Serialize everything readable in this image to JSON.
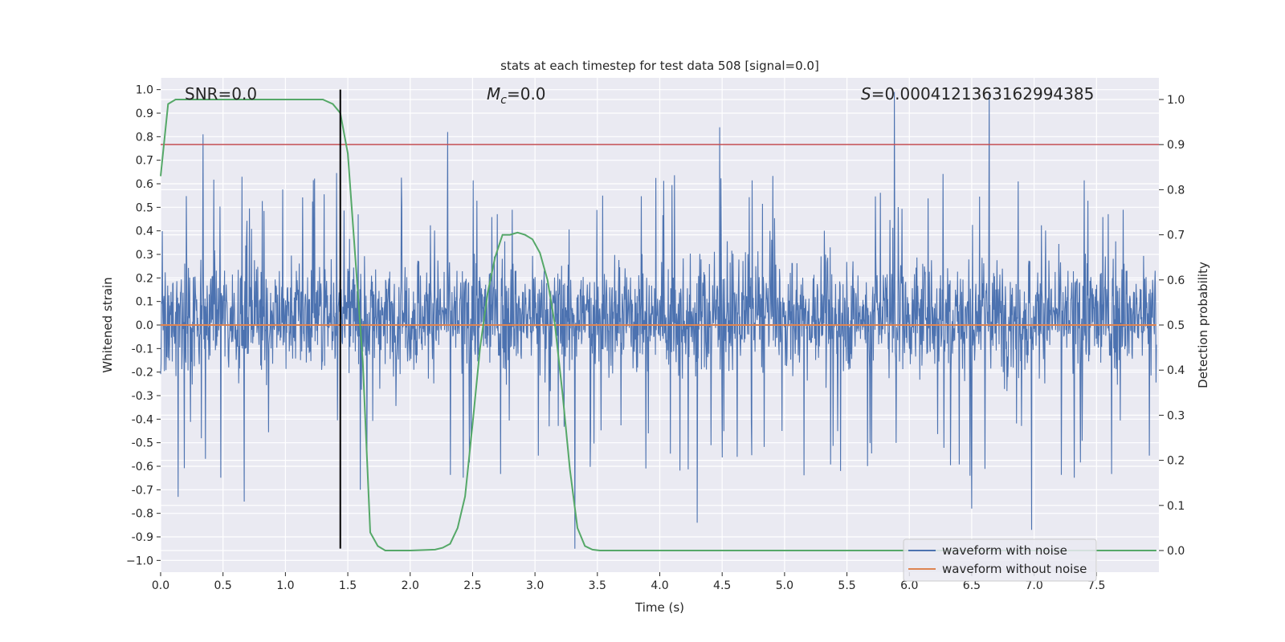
{
  "chart_data": {
    "type": "line",
    "title": "stats at each timestep for test data 508 [signal=0.0]",
    "xlabel": "Time (s)",
    "ylabel": "Whitened strain",
    "y2label": "Detection probability",
    "xlim": [
      0.0,
      8.0
    ],
    "ylim": [
      -1.05,
      1.05
    ],
    "y2lim": [
      -0.048,
      1.048
    ],
    "xticks": [
      0.0,
      0.5,
      1.0,
      1.5,
      2.0,
      2.5,
      3.0,
      3.5,
      4.0,
      4.5,
      5.0,
      5.5,
      6.0,
      6.5,
      7.0,
      7.5
    ],
    "xtick_labels": [
      "0.0",
      "0.5",
      "1.0",
      "1.5",
      "2.0",
      "2.5",
      "3.0",
      "3.5",
      "4.0",
      "4.5",
      "5.0",
      "5.5",
      "6.0",
      "6.5",
      "7.0",
      "7.5"
    ],
    "yticks": [
      1.0,
      0.9,
      0.8,
      0.7,
      0.6,
      0.5,
      0.4,
      0.3,
      0.2,
      0.1,
      0.0,
      -0.1,
      -0.2,
      -0.3,
      -0.4,
      -0.5,
      -0.6,
      -0.7,
      -0.8,
      -0.9,
      -1.0
    ],
    "ytick_labels": [
      "1.0",
      "0.9",
      "0.8",
      "0.7",
      "0.6",
      "0.5",
      "0.4",
      "0.3",
      "0.2",
      "0.1",
      "0.0",
      "-0.1",
      "-0.2",
      "-0.3",
      "-0.4",
      "-0.5",
      "-0.6",
      "-0.7",
      "-0.8",
      "-0.9",
      "−1.0"
    ],
    "y2ticks": [
      1.0,
      0.9,
      0.8,
      0.7,
      0.6,
      0.5,
      0.4,
      0.3,
      0.2,
      0.1,
      0.0
    ],
    "y2tick_labels": [
      "1.0",
      "0.9",
      "0.8",
      "0.7",
      "0.6",
      "0.5",
      "0.4",
      "0.3",
      "0.2",
      "0.1",
      "0.0"
    ],
    "annotations": {
      "snr": "SNR=0.0",
      "mc_symbol": "M",
      "mc_sub": "c",
      "mc_value": "=0.0",
      "s_symbol": "S",
      "s_value": "=0.0004121363162994385"
    },
    "series": [
      {
        "name": "waveform with noise",
        "color": "#4c72b0",
        "axis": "left",
        "kind": "noise",
        "t_range": [
          0.0,
          7.98
        ],
        "typical_envelope": [
          -0.4,
          0.5
        ],
        "peaks": [
          [
            0.34,
            0.81
          ],
          [
            2.3,
            0.82
          ],
          [
            4.48,
            0.84
          ],
          [
            5.88,
            0.99
          ],
          [
            6.64,
            0.99
          ],
          [
            3.32,
            -0.95
          ],
          [
            6.98,
            -0.87
          ],
          [
            4.3,
            -0.84
          ],
          [
            6.5,
            -0.78
          ],
          [
            1.6,
            -0.7
          ],
          [
            0.14,
            -0.73
          ],
          [
            0.67,
            -0.75
          ]
        ]
      },
      {
        "name": "waveform without noise",
        "color": "#dd8452",
        "axis": "left",
        "x": [
          0.0,
          7.98
        ],
        "y": [
          0.0,
          0.0
        ]
      },
      {
        "name": "detection probability",
        "color": "#55a868",
        "axis": "right",
        "x": [
          0.0,
          0.06,
          0.12,
          0.2,
          0.5,
          1.0,
          1.3,
          1.38,
          1.44,
          1.5,
          1.56,
          1.62,
          1.68,
          1.74,
          1.8,
          2.0,
          2.2,
          2.26,
          2.32,
          2.38,
          2.44,
          2.5,
          2.56,
          2.62,
          2.68,
          2.74,
          2.8,
          2.86,
          2.92,
          2.98,
          3.04,
          3.1,
          3.16,
          3.22,
          3.28,
          3.34,
          3.4,
          3.46,
          3.52,
          3.58,
          3.64,
          3.7,
          4.0,
          5.0,
          6.0,
          7.0,
          7.98
        ],
        "y": [
          0.83,
          0.99,
          1.0,
          1.0,
          1.0,
          1.0,
          1.0,
          0.99,
          0.97,
          0.88,
          0.65,
          0.42,
          0.04,
          0.01,
          0.0,
          0.0,
          0.002,
          0.006,
          0.015,
          0.05,
          0.12,
          0.28,
          0.45,
          0.57,
          0.65,
          0.7,
          0.7,
          0.705,
          0.7,
          0.69,
          0.66,
          0.6,
          0.5,
          0.35,
          0.18,
          0.05,
          0.01,
          0.002,
          0.0,
          0.0,
          0.0,
          0.0,
          0.0,
          0.0,
          0.0,
          0.0,
          0.0
        ]
      }
    ],
    "hlines": [
      {
        "axis": "right",
        "value": 0.9,
        "color": "#c44e52"
      }
    ],
    "vlines": [
      {
        "x": 1.44,
        "ymin": -0.95,
        "ymax": 1.0,
        "color": "#000000"
      }
    ],
    "legend": {
      "position": "lower-right",
      "entries": [
        {
          "label": "waveform with noise",
          "color": "#4c72b0"
        },
        {
          "label": "waveform without noise",
          "color": "#dd8452"
        }
      ]
    },
    "grid": true,
    "background": "#eaeaf2"
  }
}
